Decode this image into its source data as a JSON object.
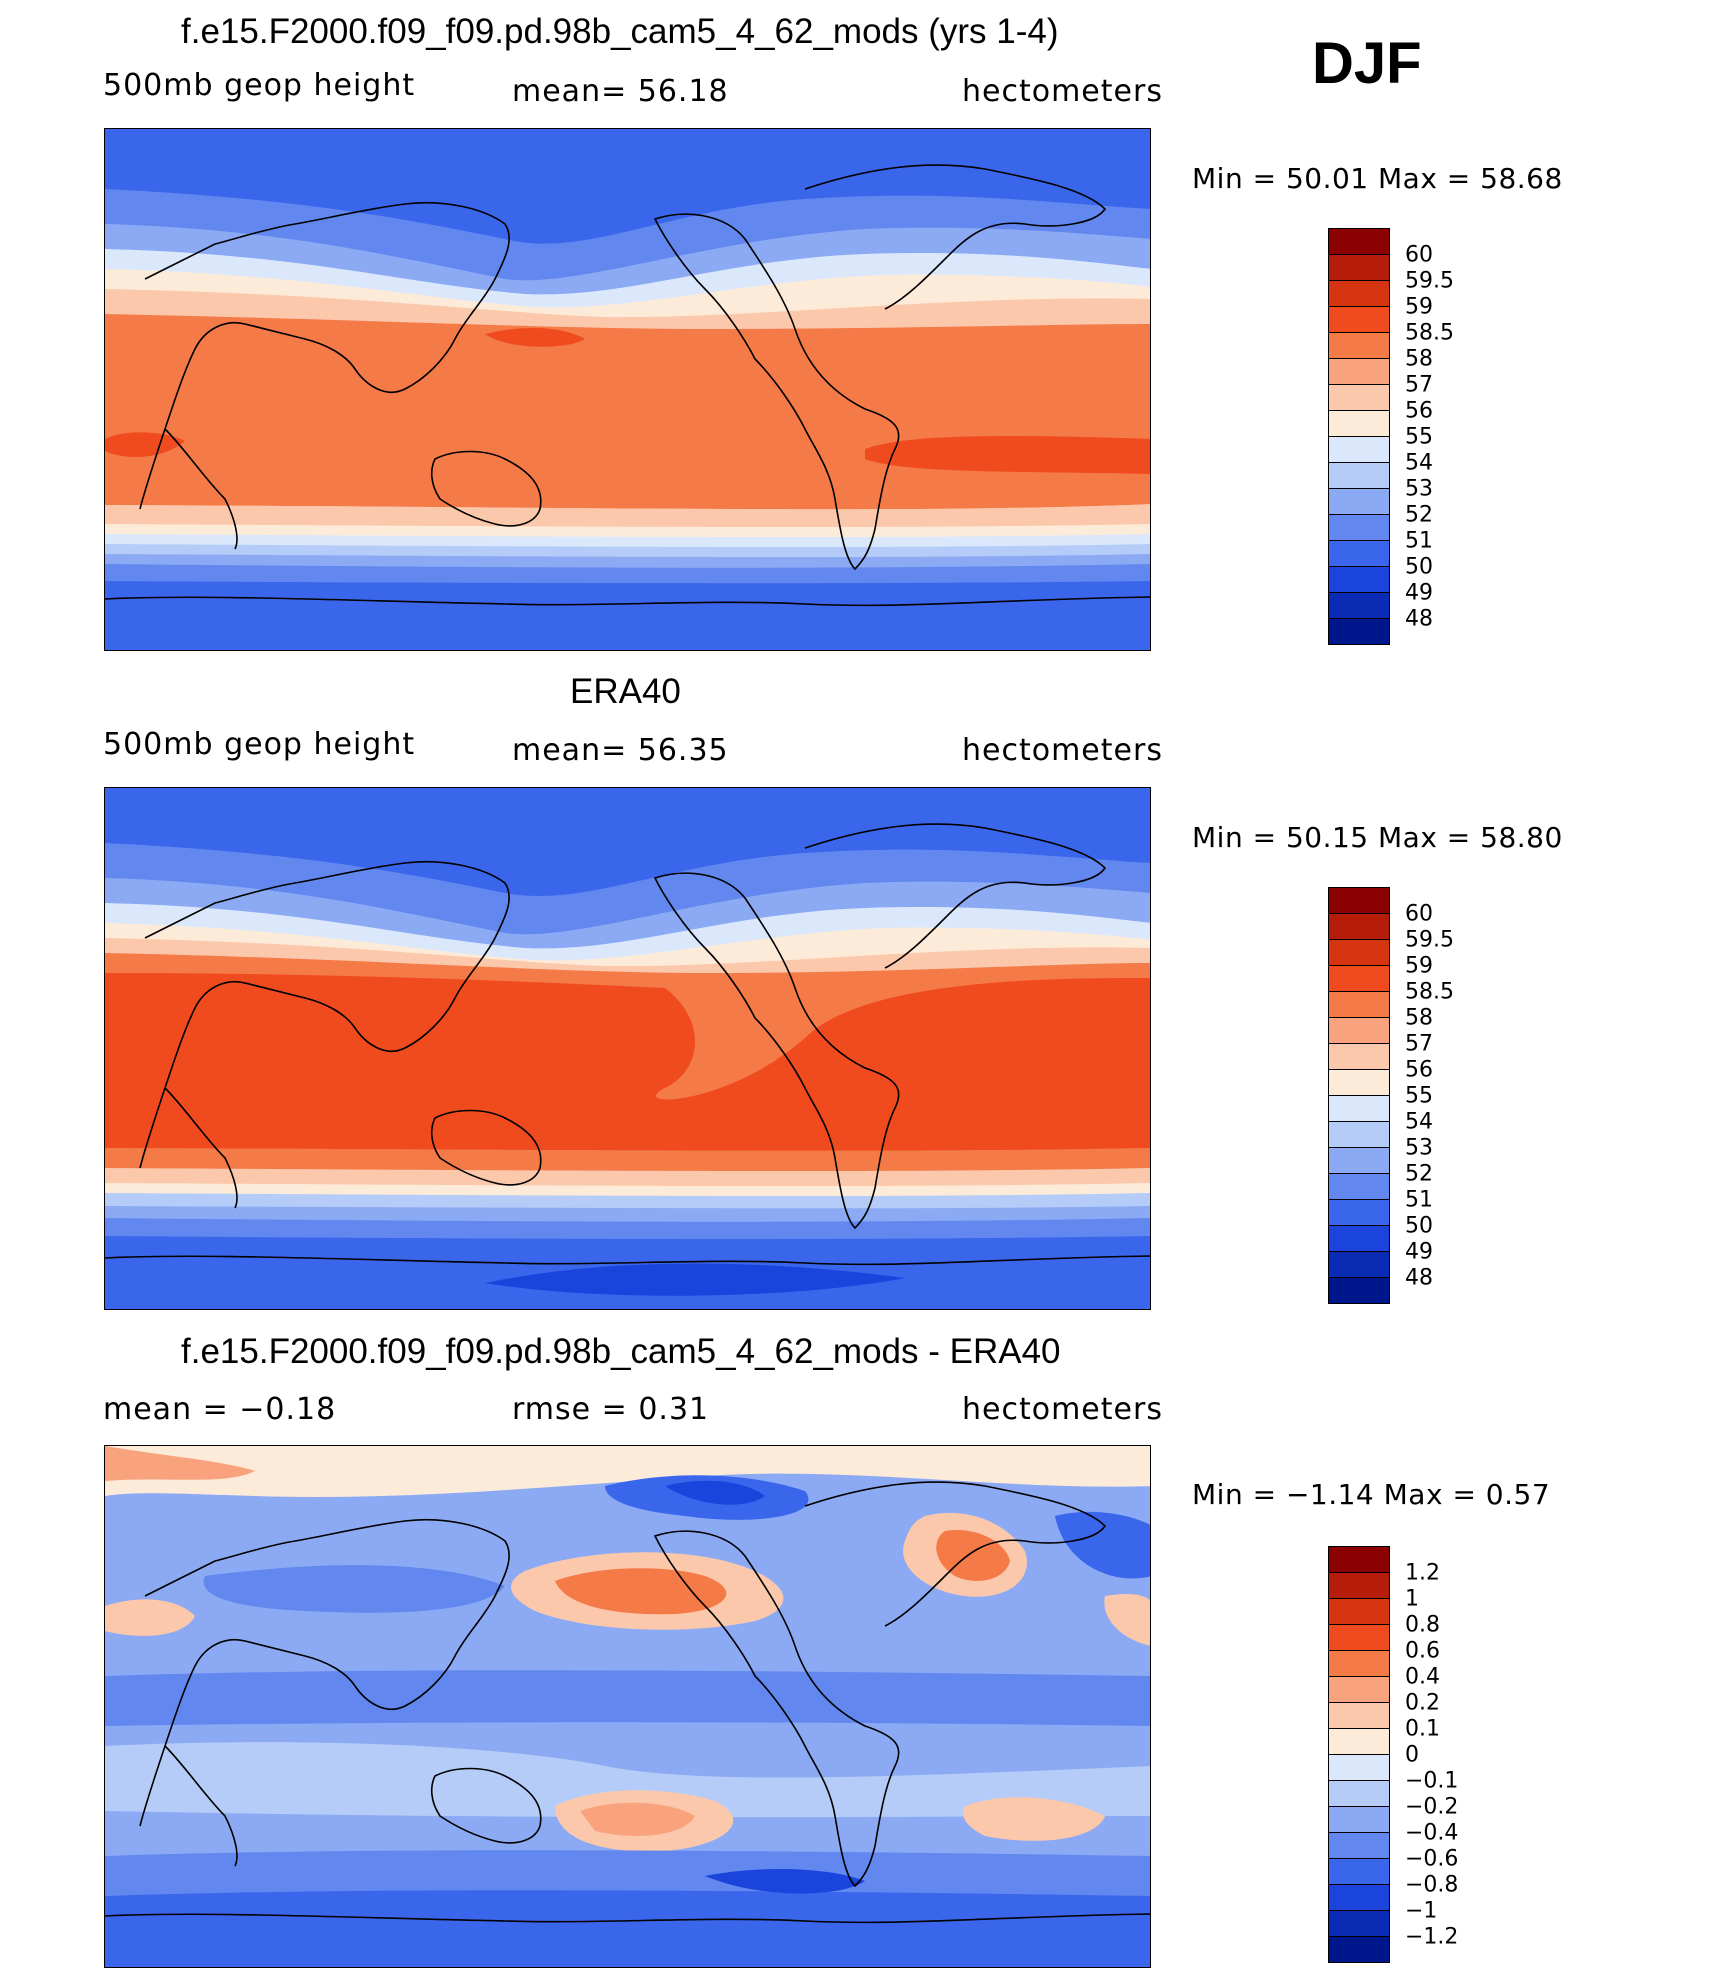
{
  "season": "DJF",
  "panels": [
    {
      "title": "f.e15.F2000.f09_f09.pd.98b_cam5_4_62_mods (yrs 1-4)",
      "left_label": "500mb geop height",
      "center_label": "mean=  56.18",
      "right_label": "hectometers",
      "min_max": "Min =   50.01  Max =   58.68"
    },
    {
      "title": "ERA40",
      "left_label": "500mb geop height",
      "center_label": "mean=  56.35",
      "right_label": "hectometers",
      "min_max": "Min =   50.15  Max =   58.80"
    },
    {
      "title": "f.e15.F2000.f09_f09.pd.98b_cam5_4_62_mods - ERA40",
      "left_label": "mean =   −0.18",
      "center_label": "rmse =    0.31",
      "right_label": "hectometers",
      "min_max": "Min =   −1.14  Max =    0.57"
    }
  ],
  "colorbars": {
    "height": {
      "labels": [
        "60",
        "59.5",
        "59",
        "58.5",
        "58",
        "57",
        "56",
        "55",
        "54",
        "53",
        "52",
        "51",
        "50",
        "49",
        "48"
      ],
      "colors": [
        "#8b0000",
        "#b51d0a",
        "#d63310",
        "#f04b1e",
        "#f47a48",
        "#f9a37e",
        "#fbc8ac",
        "#fdebd9",
        "#dbe8fb",
        "#b4ccf7",
        "#8caaf4",
        "#6288f0",
        "#3a66ec",
        "#1b44dd",
        "#0a2cb4",
        "#00168c"
      ]
    },
    "difference": {
      "labels": [
        "1.2",
        "1",
        "0.8",
        "0.6",
        "0.4",
        "0.2",
        "0.1",
        "0",
        "−0.1",
        "−0.2",
        "−0.4",
        "−0.6",
        "−0.8",
        "−1",
        "−1.2"
      ],
      "colors": [
        "#8b0000",
        "#b51d0a",
        "#d63310",
        "#f04b1e",
        "#f47a48",
        "#f9a37e",
        "#fbc8ac",
        "#fdebd9",
        "#dbe8fb",
        "#b4ccf7",
        "#8caaf4",
        "#6288f0",
        "#3a66ec",
        "#1b44dd",
        "#0a2cb4",
        "#00168c"
      ]
    }
  }
}
